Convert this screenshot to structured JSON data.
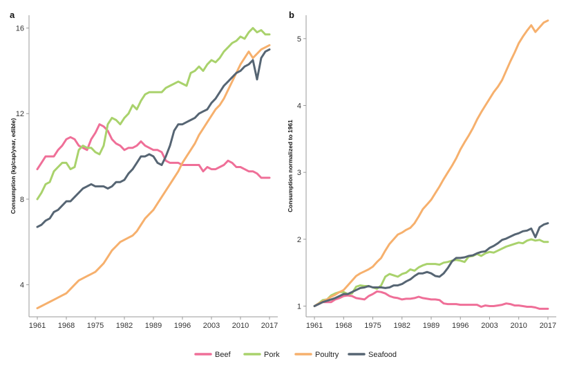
{
  "chart_data": [
    {
      "type": "line",
      "panel_label": "a",
      "ylabel": "Consumption (kg/cap/year, edible)",
      "xlabel": "",
      "xlim": [
        1959,
        2019
      ],
      "ylim": [
        2.5,
        16.6
      ],
      "xticks": [
        1961,
        1968,
        1975,
        1982,
        1989,
        1996,
        2003,
        2010,
        2017
      ],
      "yticks": [
        4,
        8,
        12,
        16
      ],
      "grid": false,
      "series": [
        {
          "name": "Beef",
          "color": "#ef6f98",
          "x": [
            1961,
            1962,
            1963,
            1964,
            1965,
            1966,
            1967,
            1968,
            1969,
            1970,
            1971,
            1972,
            1973,
            1974,
            1975,
            1976,
            1977,
            1978,
            1979,
            1980,
            1981,
            1982,
            1983,
            1984,
            1985,
            1986,
            1987,
            1988,
            1989,
            1990,
            1991,
            1992,
            1993,
            1994,
            1995,
            1996,
            1997,
            1998,
            1999,
            2000,
            2001,
            2002,
            2003,
            2004,
            2005,
            2006,
            2007,
            2008,
            2009,
            2010,
            2011,
            2012,
            2013,
            2014,
            2015,
            2016,
            2017
          ],
          "y": [
            9.4,
            9.7,
            10.0,
            10.0,
            10.0,
            10.3,
            10.5,
            10.8,
            10.9,
            10.8,
            10.5,
            10.4,
            10.3,
            10.8,
            11.1,
            11.5,
            11.4,
            11.2,
            10.8,
            10.6,
            10.5,
            10.3,
            10.4,
            10.4,
            10.5,
            10.7,
            10.5,
            10.4,
            10.3,
            10.3,
            10.2,
            9.8,
            9.7,
            9.7,
            9.7,
            9.6,
            9.6,
            9.6,
            9.6,
            9.6,
            9.3,
            9.5,
            9.4,
            9.4,
            9.5,
            9.6,
            9.8,
            9.7,
            9.5,
            9.5,
            9.4,
            9.3,
            9.3,
            9.2,
            9.0,
            9.0,
            9.0
          ]
        },
        {
          "name": "Pork",
          "color": "#a9d26c",
          "x": [
            1961,
            1962,
            1963,
            1964,
            1965,
            1966,
            1967,
            1968,
            1969,
            1970,
            1971,
            1972,
            1973,
            1974,
            1975,
            1976,
            1977,
            1978,
            1979,
            1980,
            1981,
            1982,
            1983,
            1984,
            1985,
            1986,
            1987,
            1988,
            1989,
            1990,
            1991,
            1992,
            1993,
            1994,
            1995,
            1996,
            1997,
            1998,
            1999,
            2000,
            2001,
            2002,
            2003,
            2004,
            2005,
            2006,
            2007,
            2008,
            2009,
            2010,
            2011,
            2012,
            2013,
            2014,
            2015,
            2016,
            2017
          ],
          "y": [
            8.0,
            8.3,
            8.7,
            8.8,
            9.3,
            9.5,
            9.7,
            9.7,
            9.4,
            9.5,
            10.3,
            10.5,
            10.4,
            10.4,
            10.2,
            10.1,
            10.5,
            11.5,
            11.8,
            11.7,
            11.5,
            11.8,
            12.0,
            12.4,
            12.2,
            12.6,
            12.9,
            13.0,
            13.0,
            13.0,
            13.0,
            13.2,
            13.3,
            13.4,
            13.5,
            13.4,
            13.3,
            13.9,
            14.0,
            14.2,
            14.0,
            14.3,
            14.5,
            14.4,
            14.6,
            14.9,
            15.1,
            15.3,
            15.4,
            15.6,
            15.5,
            15.8,
            16.0,
            15.8,
            15.9,
            15.7,
            15.7
          ]
        },
        {
          "name": "Poultry",
          "color": "#f6b06d",
          "x": [
            1961,
            1962,
            1963,
            1964,
            1965,
            1966,
            1967,
            1968,
            1969,
            1970,
            1971,
            1972,
            1973,
            1974,
            1975,
            1976,
            1977,
            1978,
            1979,
            1980,
            1981,
            1982,
            1983,
            1984,
            1985,
            1986,
            1987,
            1988,
            1989,
            1990,
            1991,
            1992,
            1993,
            1994,
            1995,
            1996,
            1997,
            1998,
            1999,
            2000,
            2001,
            2002,
            2003,
            2004,
            2005,
            2006,
            2007,
            2008,
            2009,
            2010,
            2011,
            2012,
            2013,
            2014,
            2015,
            2016,
            2017
          ],
          "y": [
            2.9,
            3.0,
            3.1,
            3.2,
            3.3,
            3.4,
            3.5,
            3.6,
            3.8,
            4.0,
            4.2,
            4.3,
            4.4,
            4.5,
            4.6,
            4.8,
            5.0,
            5.3,
            5.6,
            5.8,
            6.0,
            6.1,
            6.2,
            6.3,
            6.5,
            6.8,
            7.1,
            7.3,
            7.5,
            7.8,
            8.1,
            8.4,
            8.7,
            9.0,
            9.3,
            9.7,
            10.0,
            10.3,
            10.6,
            11.0,
            11.3,
            11.6,
            11.9,
            12.2,
            12.4,
            12.7,
            13.1,
            13.5,
            13.9,
            14.3,
            14.6,
            14.9,
            14.6,
            14.8,
            15.0,
            15.1,
            15.2
          ]
        },
        {
          "name": "Seafood",
          "color": "#566573",
          "x": [
            1961,
            1962,
            1963,
            1964,
            1965,
            1966,
            1967,
            1968,
            1969,
            1970,
            1971,
            1972,
            1973,
            1974,
            1975,
            1976,
            1977,
            1978,
            1979,
            1980,
            1981,
            1982,
            1983,
            1984,
            1985,
            1986,
            1987,
            1988,
            1989,
            1990,
            1991,
            1992,
            1993,
            1994,
            1995,
            1996,
            1997,
            1998,
            1999,
            2000,
            2001,
            2002,
            2003,
            2004,
            2005,
            2006,
            2007,
            2008,
            2009,
            2010,
            2011,
            2012,
            2013,
            2014,
            2015,
            2016,
            2017
          ],
          "y": [
            6.7,
            6.8,
            7.0,
            7.1,
            7.4,
            7.5,
            7.7,
            7.9,
            7.9,
            8.1,
            8.3,
            8.5,
            8.6,
            8.7,
            8.6,
            8.6,
            8.6,
            8.5,
            8.6,
            8.8,
            8.8,
            8.9,
            9.2,
            9.4,
            9.7,
            10.0,
            10.0,
            10.1,
            10.0,
            9.7,
            9.6,
            10.0,
            10.5,
            11.2,
            11.5,
            11.5,
            11.6,
            11.7,
            11.8,
            12.0,
            12.1,
            12.2,
            12.5,
            12.7,
            13.0,
            13.3,
            13.5,
            13.7,
            13.9,
            14.0,
            14.2,
            14.3,
            14.5,
            13.6,
            14.6,
            14.9,
            15.0
          ]
        }
      ]
    },
    {
      "type": "line",
      "panel_label": "b",
      "ylabel": "Consumption normalized to 1961",
      "xlabel": "",
      "xlim": [
        1959,
        2019
      ],
      "ylim": [
        0.84,
        5.35
      ],
      "xticks": [
        1961,
        1968,
        1975,
        1982,
        1989,
        1996,
        2003,
        2010,
        2017
      ],
      "yticks": [
        1,
        2,
        3,
        4,
        5
      ],
      "grid": false,
      "series": [
        {
          "name": "Beef",
          "color": "#ef6f98",
          "x": [
            1961,
            1962,
            1963,
            1964,
            1965,
            1966,
            1967,
            1968,
            1969,
            1970,
            1971,
            1972,
            1973,
            1974,
            1975,
            1976,
            1977,
            1978,
            1979,
            1980,
            1981,
            1982,
            1983,
            1984,
            1985,
            1986,
            1987,
            1988,
            1989,
            1990,
            1991,
            1992,
            1993,
            1994,
            1995,
            1996,
            1997,
            1998,
            1999,
            2000,
            2001,
            2002,
            2003,
            2004,
            2005,
            2006,
            2007,
            2008,
            2009,
            2010,
            2011,
            2012,
            2013,
            2014,
            2015,
            2016,
            2017
          ],
          "y": [
            1.0,
            1.03,
            1.06,
            1.06,
            1.06,
            1.1,
            1.12,
            1.15,
            1.16,
            1.15,
            1.12,
            1.11,
            1.1,
            1.15,
            1.18,
            1.22,
            1.21,
            1.19,
            1.15,
            1.13,
            1.12,
            1.1,
            1.11,
            1.11,
            1.12,
            1.14,
            1.12,
            1.11,
            1.1,
            1.1,
            1.09,
            1.04,
            1.03,
            1.03,
            1.03,
            1.02,
            1.02,
            1.02,
            1.02,
            1.02,
            0.99,
            1.01,
            1.0,
            1.0,
            1.01,
            1.02,
            1.04,
            1.03,
            1.01,
            1.01,
            1.0,
            0.99,
            0.99,
            0.98,
            0.96,
            0.96,
            0.96
          ]
        },
        {
          "name": "Pork",
          "color": "#a9d26c",
          "x": [
            1961,
            1962,
            1963,
            1964,
            1965,
            1966,
            1967,
            1968,
            1969,
            1970,
            1971,
            1972,
            1973,
            1974,
            1975,
            1976,
            1977,
            1978,
            1979,
            1980,
            1981,
            1982,
            1983,
            1984,
            1985,
            1986,
            1987,
            1988,
            1989,
            1990,
            1991,
            1992,
            1993,
            1994,
            1995,
            1996,
            1997,
            1998,
            1999,
            2000,
            2001,
            2002,
            2003,
            2004,
            2005,
            2006,
            2007,
            2008,
            2009,
            2010,
            2011,
            2012,
            2013,
            2014,
            2015,
            2016,
            2017
          ],
          "y": [
            1.0,
            1.04,
            1.09,
            1.1,
            1.16,
            1.19,
            1.21,
            1.21,
            1.18,
            1.19,
            1.29,
            1.31,
            1.3,
            1.3,
            1.28,
            1.26,
            1.31,
            1.44,
            1.48,
            1.46,
            1.44,
            1.48,
            1.5,
            1.55,
            1.53,
            1.58,
            1.61,
            1.63,
            1.63,
            1.63,
            1.62,
            1.65,
            1.66,
            1.68,
            1.69,
            1.68,
            1.66,
            1.74,
            1.75,
            1.78,
            1.75,
            1.79,
            1.81,
            1.8,
            1.83,
            1.86,
            1.89,
            1.91,
            1.93,
            1.95,
            1.94,
            1.98,
            2.0,
            1.98,
            1.99,
            1.96,
            1.96
          ]
        },
        {
          "name": "Poultry",
          "color": "#f6b06d",
          "x": [
            1961,
            1962,
            1963,
            1964,
            1965,
            1966,
            1967,
            1968,
            1969,
            1970,
            1971,
            1972,
            1973,
            1974,
            1975,
            1976,
            1977,
            1978,
            1979,
            1980,
            1981,
            1982,
            1983,
            1984,
            1985,
            1986,
            1987,
            1988,
            1989,
            1990,
            1991,
            1992,
            1993,
            1994,
            1995,
            1996,
            1997,
            1998,
            1999,
            2000,
            2001,
            2002,
            2003,
            2004,
            2005,
            2006,
            2007,
            2008,
            2009,
            2010,
            2011,
            2012,
            2013,
            2014,
            2015,
            2016,
            2017
          ],
          "y": [
            1.0,
            1.04,
            1.07,
            1.1,
            1.14,
            1.17,
            1.21,
            1.24,
            1.31,
            1.38,
            1.45,
            1.49,
            1.52,
            1.55,
            1.59,
            1.66,
            1.72,
            1.83,
            1.93,
            2.0,
            2.07,
            2.1,
            2.14,
            2.17,
            2.24,
            2.34,
            2.45,
            2.52,
            2.59,
            2.69,
            2.79,
            2.9,
            3.0,
            3.1,
            3.21,
            3.34,
            3.45,
            3.55,
            3.66,
            3.79,
            3.9,
            4.0,
            4.1,
            4.2,
            4.28,
            4.38,
            4.52,
            4.66,
            4.79,
            4.93,
            5.03,
            5.12,
            5.2,
            5.1,
            5.17,
            5.24,
            5.27
          ]
        },
        {
          "name": "Seafood",
          "color": "#566573",
          "x": [
            1961,
            1962,
            1963,
            1964,
            1965,
            1966,
            1967,
            1968,
            1969,
            1970,
            1971,
            1972,
            1973,
            1974,
            1975,
            1976,
            1977,
            1978,
            1979,
            1980,
            1981,
            1982,
            1983,
            1984,
            1985,
            1986,
            1987,
            1988,
            1989,
            1990,
            1991,
            1992,
            1993,
            1994,
            1995,
            1996,
            1997,
            1998,
            1999,
            2000,
            2001,
            2002,
            2003,
            2004,
            2005,
            2006,
            2007,
            2008,
            2009,
            2010,
            2011,
            2012,
            2013,
            2014,
            2015,
            2016,
            2017
          ],
          "y": [
            1.0,
            1.03,
            1.06,
            1.08,
            1.1,
            1.12,
            1.15,
            1.18,
            1.18,
            1.21,
            1.24,
            1.27,
            1.28,
            1.3,
            1.28,
            1.28,
            1.28,
            1.27,
            1.28,
            1.31,
            1.31,
            1.33,
            1.37,
            1.4,
            1.45,
            1.49,
            1.49,
            1.51,
            1.49,
            1.45,
            1.44,
            1.49,
            1.57,
            1.67,
            1.72,
            1.72,
            1.73,
            1.75,
            1.76,
            1.79,
            1.81,
            1.82,
            1.87,
            1.9,
            1.94,
            1.99,
            2.01,
            2.04,
            2.07,
            2.09,
            2.12,
            2.13,
            2.16,
            2.03,
            2.18,
            2.22,
            2.24
          ]
        }
      ]
    }
  ],
  "legend": {
    "placement": "bottom-center",
    "items": [
      {
        "name": "Beef",
        "color": "#ef6f98"
      },
      {
        "name": "Pork",
        "color": "#a9d26c"
      },
      {
        "name": "Poultry",
        "color": "#f6b06d"
      },
      {
        "name": "Seafood",
        "color": "#566573"
      }
    ]
  }
}
